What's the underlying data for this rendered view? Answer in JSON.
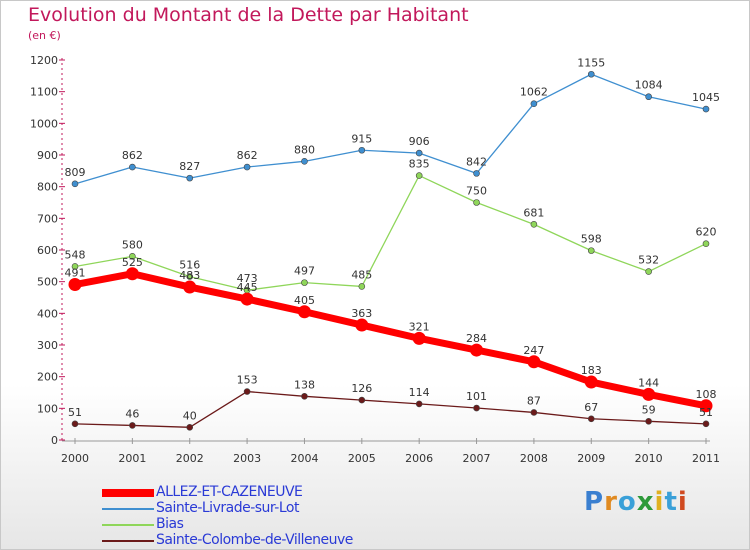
{
  "chart_data": {
    "type": "line",
    "title": "Evolution du Montant de la Dette par Habitant",
    "subtitle": "(en €)",
    "xlabel": "",
    "ylabel": "",
    "categories": [
      "2000",
      "2001",
      "2002",
      "2003",
      "2004",
      "2005",
      "2006",
      "2007",
      "2008",
      "2009",
      "2010",
      "2011"
    ],
    "ylim": [
      0,
      1200
    ],
    "yticks": [
      0,
      100,
      200,
      300,
      400,
      500,
      600,
      700,
      800,
      900,
      1000,
      1100,
      1200
    ],
    "grid": false,
    "legend_position": "bottom-left",
    "series": [
      {
        "name": "ALLEZ-ET-CAZENEUVE",
        "color": "#ff0000",
        "values": [
          491,
          525,
          483,
          445,
          405,
          363,
          321,
          284,
          247,
          183,
          144,
          108
        ]
      },
      {
        "name": "Sainte-Livrade-sur-Lot",
        "color": "#3f8fd0",
        "values": [
          809,
          862,
          827,
          862,
          880,
          915,
          906,
          842,
          1062,
          1155,
          1084,
          1045
        ]
      },
      {
        "name": "Bias",
        "color": "#8fd65a",
        "values": [
          548,
          580,
          516,
          473,
          497,
          485,
          835,
          750,
          681,
          598,
          532,
          620
        ]
      },
      {
        "name": "Sainte-Colombe-de-Villeneuve",
        "color": "#6b1a1a",
        "values": [
          51,
          46,
          40,
          153,
          138,
          126,
          114,
          101,
          87,
          67,
          59,
          51
        ]
      }
    ]
  },
  "logo_text": "Proxiti"
}
